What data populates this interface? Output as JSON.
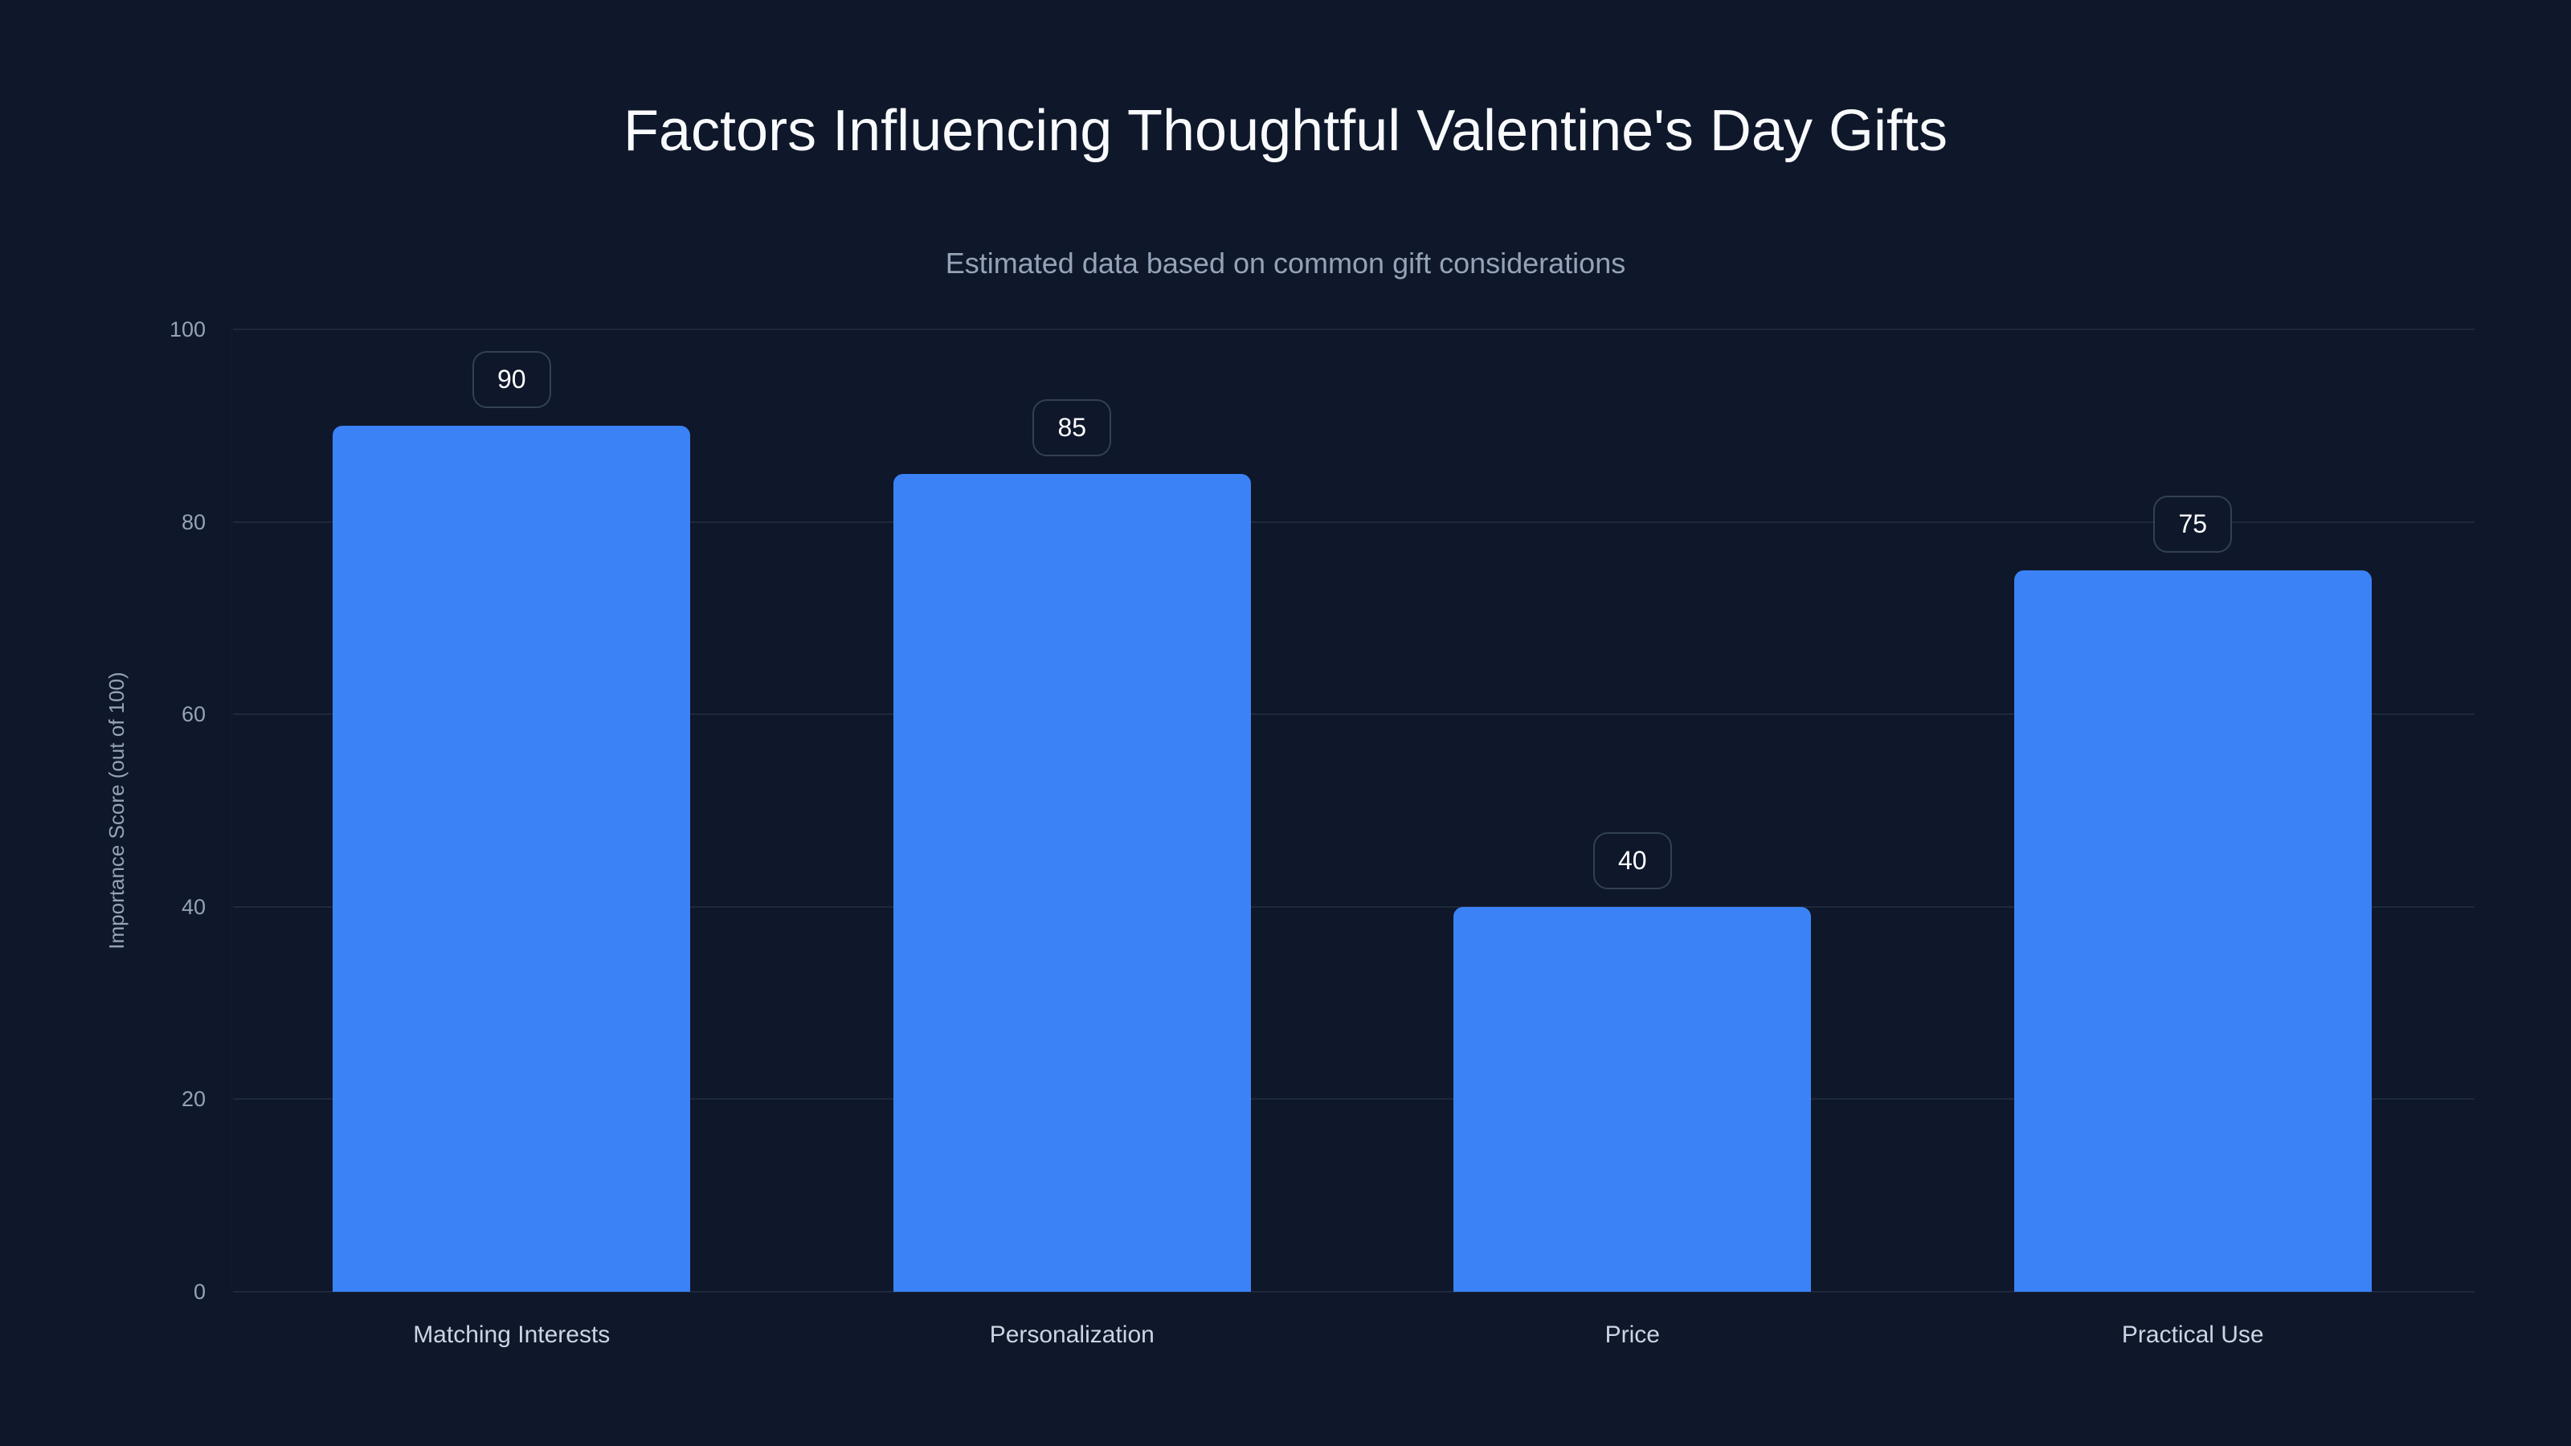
{
  "header": {
    "title": "Factors Influencing Thoughtful Valentine's Day Gifts",
    "subtitle": "Estimated data based on common gift considerations"
  },
  "axes": {
    "y_title": "Importance Score (out of 100)",
    "y_ticks": [
      "0",
      "20",
      "40",
      "60",
      "80",
      "100"
    ]
  },
  "bars": [
    {
      "label": "Matching Interests",
      "value": "90"
    },
    {
      "label": "Personalization",
      "value": "85"
    },
    {
      "label": "Price",
      "value": "40"
    },
    {
      "label": "Practical Use",
      "value": "75"
    }
  ],
  "colors": {
    "background": "#0F172A",
    "bar": "#3B82F6",
    "gridline": "#1E293B",
    "title": "#F8FAFC",
    "muted_text": "#94A3B8",
    "badge_border": "#334155"
  },
  "chart_data": {
    "type": "bar",
    "title": "Factors Influencing Thoughtful Valentine's Day Gifts",
    "subtitle": "Estimated data based on common gift considerations",
    "categories": [
      "Matching Interests",
      "Personalization",
      "Price",
      "Practical Use"
    ],
    "values": [
      90,
      85,
      40,
      75
    ],
    "xlabel": "",
    "ylabel": "Importance Score (out of 100)",
    "ylim": [
      0,
      100
    ],
    "yticks": [
      0,
      20,
      40,
      60,
      80,
      100
    ],
    "grid": true,
    "legend": "none",
    "data_labels": true
  }
}
